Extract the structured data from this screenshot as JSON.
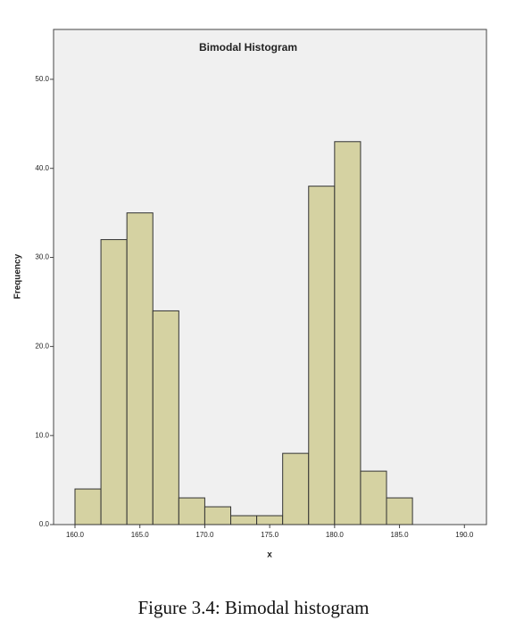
{
  "chart_data": {
    "type": "histogram",
    "title": "Bimodal Histogram",
    "x_label": "x",
    "y_label": "Frequency",
    "caption": "Figure 3.4: Bimodal histogram",
    "bins": [
      160,
      162,
      164,
      166,
      168,
      170,
      172,
      174,
      176,
      178,
      180,
      182,
      184,
      186
    ],
    "values": [
      4,
      32,
      35,
      24,
      3,
      2,
      1,
      1,
      8,
      38,
      43,
      6,
      3
    ],
    "color": "#d5d2a2",
    "xlim": [
      158.35,
      191.7
    ],
    "ylim": [
      0,
      55.6
    ],
    "xticks": [
      {
        "value": 160,
        "label": "160.0"
      },
      {
        "value": 165,
        "label": "165.0"
      },
      {
        "value": 170,
        "label": "170.0"
      },
      {
        "value": 175,
        "label": "175.0"
      },
      {
        "value": 180,
        "label": "180.0"
      },
      {
        "value": 185,
        "label": "185.0"
      },
      {
        "value": 190,
        "label": "190.0"
      }
    ],
    "yticks": [
      {
        "value": 0,
        "label": "0.0"
      },
      {
        "value": 10,
        "label": "10.0"
      },
      {
        "value": 20,
        "label": "20.0"
      },
      {
        "value": 30,
        "label": "30.0"
      },
      {
        "value": 40,
        "label": "40.0"
      },
      {
        "value": 50,
        "label": "50.0"
      }
    ]
  }
}
